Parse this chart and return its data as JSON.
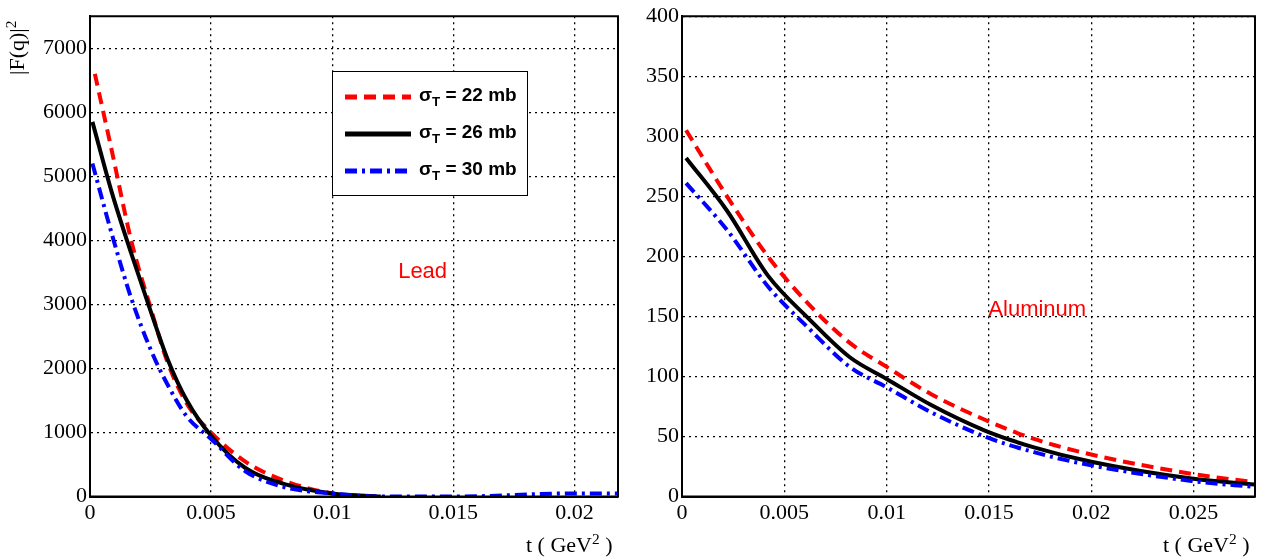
{
  "chart_data": [
    {
      "type": "line",
      "ylabel": "|F(q)|$^{2}$",
      "xlabel": "t   ( GeV$^{2}$ )",
      "xlim": [
        0,
        0.0218
      ],
      "ylim": [
        0,
        7500
      ],
      "xticks": [
        0,
        0.005,
        0.01,
        0.015,
        0.02
      ],
      "yticks": [
        0,
        1000,
        2000,
        3000,
        4000,
        5000,
        6000,
        7000
      ],
      "grid": true,
      "legend": "top right",
      "annotations": [
        "Lead"
      ],
      "series": [
        {
          "name": "σ$_{T}$ = 22 mb",
          "color": "#ff0000",
          "line_style": "dashed",
          "x": [
            0.0002,
            0.0009,
            0.0017,
            0.0025,
            0.0032,
            0.004,
            0.005,
            0.0064,
            0.008,
            0.01,
            0.012
          ],
          "values": [
            6600,
            5400,
            4000,
            2950,
            2100,
            1450,
            1000,
            550,
            250,
            50,
            0
          ]
        },
        {
          "name": "σ$_{T}$ = 26 mb",
          "color": "#000000",
          "line_style": "solid",
          "x": [
            0.0001,
            0.0009,
            0.0017,
            0.0025,
            0.0032,
            0.004,
            0.005,
            0.0064,
            0.008,
            0.01,
            0.012
          ],
          "values": [
            5850,
            4750,
            3800,
            2900,
            2150,
            1500,
            950,
            450,
            200,
            50,
            0
          ]
        },
        {
          "name": "σ$_{T}$ = 30 mb",
          "color": "#0000ff",
          "line_style": "dotted",
          "x": [
            0.0001,
            0.0009,
            0.0017,
            0.0025,
            0.0032,
            0.004,
            0.005,
            0.0064,
            0.008,
            0.01,
            0.012,
            0.015,
            0.02,
            0.0218
          ],
          "values": [
            5200,
            4100,
            3100,
            2300,
            1750,
            1250,
            900,
            400,
            150,
            50,
            0,
            0,
            50,
            50
          ]
        }
      ]
    },
    {
      "type": "line",
      "xlabel": "t   ( GeV$^{2}$ )",
      "xlim": [
        0,
        0.028
      ],
      "ylim": [
        0,
        400
      ],
      "xticks": [
        0,
        0.005,
        0.01,
        0.015,
        0.02,
        0.025
      ],
      "yticks": [
        0,
        50,
        100,
        150,
        200,
        250,
        300,
        350,
        400
      ],
      "grid": true,
      "annotations": [
        "Aluminum"
      ],
      "series": [
        {
          "color": "#ff0000",
          "line_style": "dashed",
          "x": [
            0.0002,
            0.0022,
            0.0042,
            0.0062,
            0.0082,
            0.01,
            0.0122,
            0.0148,
            0.0172,
            0.02,
            0.0249,
            0.028
          ],
          "values": [
            305,
            250,
            200,
            160,
            128,
            108,
            85,
            64,
            48,
            35,
            19,
            12
          ]
        },
        {
          "color": "#000000",
          "line_style": "solid",
          "x": [
            0.0002,
            0.0022,
            0.0042,
            0.0062,
            0.0082,
            0.01,
            0.0122,
            0.0148,
            0.0172,
            0.02,
            0.0249,
            0.028
          ],
          "values": [
            282,
            238,
            184,
            148,
            116,
            98,
            76,
            55,
            41,
            29,
            15,
            10
          ]
        },
        {
          "color": "#0000ff",
          "line_style": "dotted",
          "x": [
            0.0002,
            0.0022,
            0.0042,
            0.0062,
            0.0082,
            0.01,
            0.0122,
            0.0148,
            0.0172,
            0.02,
            0.0249,
            0.028
          ],
          "values": [
            261,
            222,
            175,
            140,
            108,
            91,
            70,
            50,
            37,
            26,
            13,
            8
          ]
        }
      ]
    }
  ]
}
